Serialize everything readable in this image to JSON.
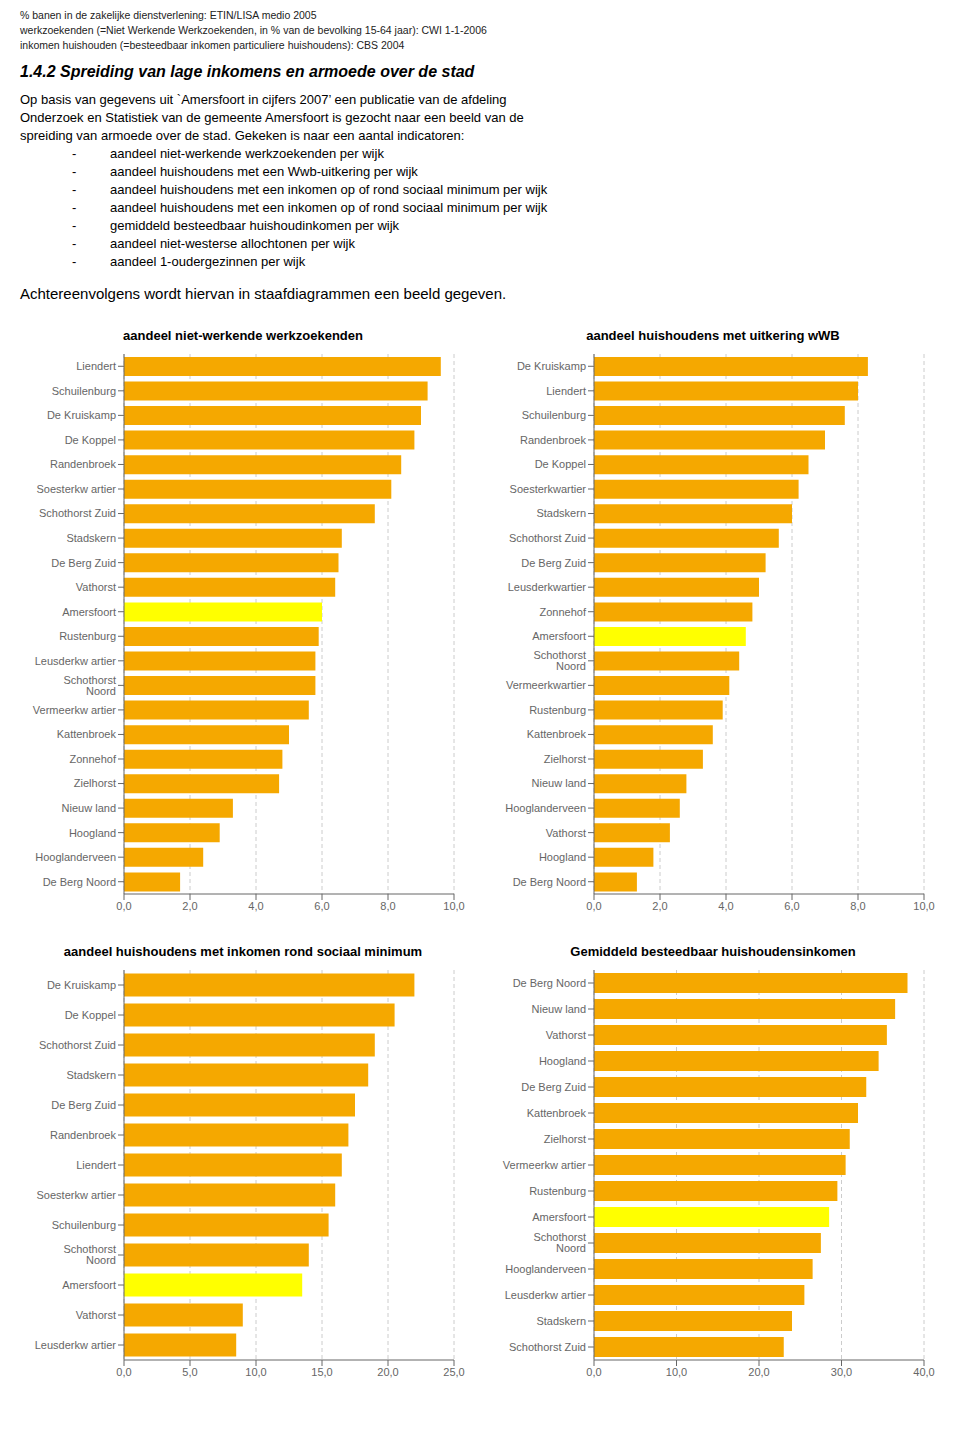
{
  "annotations": [
    "% banen in de zakelijke dienstverlening: ETIN/LISA medio 2005",
    "werkzoekenden (=Niet Werkende Werkzoekenden, in % van de bevolking 15-64 jaar): CWI 1-1-2006",
    "inkomen huishouden (=besteedbaar inkomen particuliere huishoudens): CBS 2004",
    "1.4.2  Spreiding van lage inkomens en armoede over de stad",
    "Op basis van gegevens uit `Amersfoort in cijfers 2007’ een publicatie van de afdeling",
    "Onderzoek en Statistiek van de gemeente Amersfoort is gezocht naar een beeld van de",
    "spreiding van armoede over de stad. Gekeken is naar een aantal indicatoren:",
    "-",
    "aandeel niet-werkende werkzoekenden per wijk",
    "-",
    "aandeel huishoudens met een Wwb-uitkering per wijk",
    "-",
    "aandeel huishoudens met een inkomen op of rond sociaal minimum per wijk",
    "-",
    "aandeel huishoudens met een inkomen op of rond sociaal minimum per wijk",
    "-",
    "gemiddeld besteedbaar huishoudinkomen per wijk",
    "-",
    "aandeel niet-westerse allochtonen per wijk",
    "-",
    "aandeel 1-oudergezinnen per wijk",
    "Achtereenvolgens wordt hiervan in staafdiagrammen een beeld gegeven."
  ],
  "chart_data": [
    {
      "type": "bar",
      "orientation": "horizontal",
      "title": "aandeel niet-werkende werkzoekenden",
      "categories": [
        "Liendert",
        "Schuilenburg",
        "De Kruiskamp",
        "De Koppel",
        "Randenbroek",
        "Soesterkw artier",
        "Schothorst Zuid",
        "Stadskern",
        "De Berg Zuid",
        "Vathorst",
        "Amersfoort",
        "Rustenburg",
        "Leusderkw artier",
        "Schothorst Noord",
        "Vermeerkw artier",
        "Kattenbroek",
        "Zonnehof",
        "Zielhorst",
        "Nieuw land",
        "Hoogland",
        "Hooglanderveen",
        "De Berg Noord"
      ],
      "values": [
        9.6,
        9.2,
        9.0,
        8.8,
        8.4,
        8.1,
        7.6,
        6.6,
        6.5,
        6.4,
        6.0,
        5.9,
        5.8,
        5.8,
        5.6,
        5.0,
        4.8,
        4.7,
        3.3,
        2.9,
        2.4,
        1.7
      ],
      "colors": [
        "#F5A800",
        "#F5A800",
        "#F5A800",
        "#F5A800",
        "#F5A800",
        "#F5A800",
        "#F5A800",
        "#F5A800",
        "#F5A800",
        "#F5A800",
        "#FFFF00",
        "#F5A800",
        "#F5A800",
        "#F5A800",
        "#F5A800",
        "#F5A800",
        "#F5A800",
        "#F5A800",
        "#F5A800",
        "#F5A800",
        "#F5A800",
        "#F5A800"
      ],
      "xlim": [
        0,
        10.0
      ],
      "xticks": [
        {
          "value": 0.0,
          "label": "0,0"
        },
        {
          "value": 2.0,
          "label": "2,0"
        },
        {
          "value": 4.0,
          "label": "4,0"
        },
        {
          "value": 6.0,
          "label": "6,0"
        },
        {
          "value": 8.0,
          "label": "8,0"
        },
        {
          "value": 10.0,
          "label": "10,0"
        }
      ],
      "grid": true
    },
    {
      "type": "bar",
      "orientation": "horizontal",
      "title": "aandeel huishoudens met uitkering wWB",
      "categories": [
        "De Kruiskamp",
        "Liendert",
        "Schuilenburg",
        "Randenbroek",
        "De Koppel",
        "Soesterkwartier",
        "Stadskern",
        "Schothorst Zuid",
        "De Berg Zuid",
        "Leusderkwartier",
        "Zonnehof",
        "Amersfoort",
        "Schothorst Noord",
        "Vermeerkwartier",
        "Rustenburg",
        "Kattenbroek",
        "Zielhorst",
        "Nieuw land",
        "Hooglanderveen",
        "Vathorst",
        "Hoogland",
        "De Berg Noord"
      ],
      "values": [
        8.3,
        8.0,
        7.6,
        7.0,
        6.5,
        6.2,
        6.0,
        5.6,
        5.2,
        5.0,
        4.8,
        4.6,
        4.4,
        4.1,
        3.9,
        3.6,
        3.3,
        2.8,
        2.6,
        2.3,
        1.8,
        1.3
      ],
      "colors": [
        "#F5A800",
        "#F5A800",
        "#F5A800",
        "#F5A800",
        "#F5A800",
        "#F5A800",
        "#F5A800",
        "#F5A800",
        "#F5A800",
        "#F5A800",
        "#F5A800",
        "#FFFF00",
        "#F5A800",
        "#F5A800",
        "#F5A800",
        "#F5A800",
        "#F5A800",
        "#F5A800",
        "#F5A800",
        "#F5A800",
        "#F5A800",
        "#F5A800"
      ],
      "xlim": [
        0,
        10.0
      ],
      "xticks": [
        {
          "value": 0.0,
          "label": "0,0"
        },
        {
          "value": 2.0,
          "label": "2,0"
        },
        {
          "value": 4.0,
          "label": "4,0"
        },
        {
          "value": 6.0,
          "label": "6,0"
        },
        {
          "value": 8.0,
          "label": "8,0"
        },
        {
          "value": 10.0,
          "label": "10,0"
        }
      ],
      "grid": true
    },
    {
      "type": "bar",
      "orientation": "horizontal",
      "title": "aandeel huishoudens met inkomen rond sociaal minimum",
      "categories": [
        "De Kruiskamp",
        "De Koppel",
        "Schothorst Zuid",
        "Stadskern",
        "De Berg Zuid",
        "Randenbroek",
        "Liendert",
        "Soesterkw artier",
        "Schuilenburg",
        "Schothorst Noord",
        "Amersfoort",
        "Vathorst",
        "Leusderkw artier"
      ],
      "values": [
        22.0,
        20.5,
        19.0,
        18.5,
        17.5,
        17.0,
        16.5,
        16.0,
        15.5,
        14.0,
        13.5,
        9.0,
        8.5
      ],
      "colors": [
        "#F5A800",
        "#F5A800",
        "#F5A800",
        "#F5A800",
        "#F5A800",
        "#F5A800",
        "#F5A800",
        "#F5A800",
        "#F5A800",
        "#F5A800",
        "#FFFF00",
        "#F5A800",
        "#F5A800"
      ],
      "xlim": [
        0,
        25.0
      ],
      "xticks": [
        {
          "value": 0.0,
          "label": "0,0"
        },
        {
          "value": 5.0,
          "label": "5,0"
        },
        {
          "value": 10.0,
          "label": "10,0"
        },
        {
          "value": 15.0,
          "label": "15,0"
        },
        {
          "value": 20.0,
          "label": "20,0"
        },
        {
          "value": 25.0,
          "label": "25,0"
        }
      ],
      "grid": true
    },
    {
      "type": "bar",
      "orientation": "horizontal",
      "title": "Gemiddeld besteedbaar huishoudensinkomen",
      "categories": [
        "De Berg Noord",
        "Nieuw land",
        "Vathorst",
        "Hoogland",
        "De Berg Zuid",
        "Kattenbroek",
        "Zielhorst",
        "Vermeerkw artier",
        "Rustenburg",
        "Amersfoort",
        "Schothorst Noord",
        "Hooglanderveen",
        "Leusderkw artier",
        "Stadskern",
        "Schothorst Zuid"
      ],
      "values": [
        38.0,
        36.5,
        35.5,
        34.5,
        33.0,
        32.0,
        31.0,
        30.5,
        29.5,
        28.5,
        27.5,
        26.5,
        25.5,
        24.0,
        23.0
      ],
      "colors": [
        "#F5A800",
        "#F5A800",
        "#F5A800",
        "#F5A800",
        "#F5A800",
        "#F5A800",
        "#F5A800",
        "#F5A800",
        "#F5A800",
        "#FFFF00",
        "#F5A800",
        "#F5A800",
        "#F5A800",
        "#F5A800",
        "#F5A800"
      ],
      "xlim": [
        0,
        40.0
      ],
      "xticks": [
        {
          "value": 0.0,
          "label": "0,0"
        },
        {
          "value": 10.0,
          "label": "10,0"
        },
        {
          "value": 20.0,
          "label": "20,0"
        },
        {
          "value": 30.0,
          "label": "30,0"
        },
        {
          "value": 40.0,
          "label": "40,0"
        }
      ],
      "grid": true
    }
  ]
}
